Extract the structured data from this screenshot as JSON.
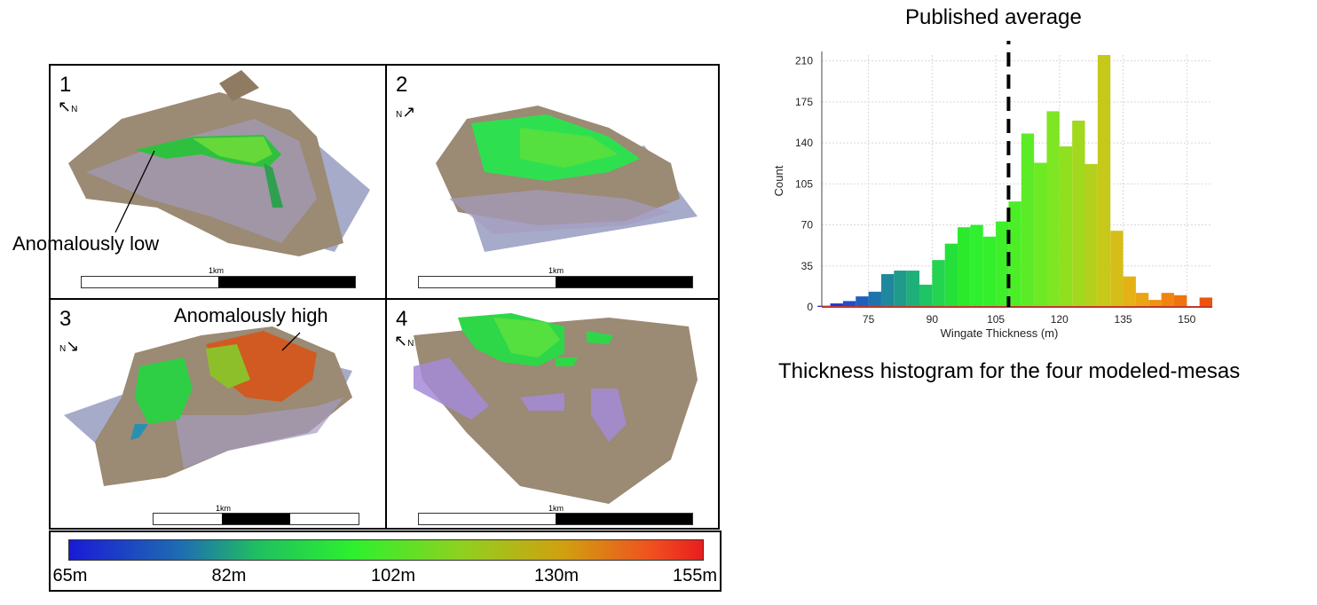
{
  "panels": [
    {
      "number": "1",
      "north": "N",
      "scale": "1km"
    },
    {
      "number": "2",
      "north": "N",
      "scale": "1km"
    },
    {
      "number": "3",
      "north": "N",
      "scale": "1km"
    },
    {
      "number": "4",
      "north": "N",
      "scale": "1km"
    }
  ],
  "annotations": {
    "low": "Anomalously low",
    "high": "Anomalously high"
  },
  "colorbar": {
    "ticks": [
      "65m",
      "82m",
      "102m",
      "130m",
      "155m"
    ],
    "colors": [
      "#1a1ad6",
      "#2ef02e",
      "#e81e1e"
    ]
  },
  "histogram_title": "Published average",
  "caption": "Thickness histogram for the four modeled-mesas",
  "chart_data": {
    "type": "bar",
    "xlabel": "Wingate Thickness (m)",
    "ylabel": "Count",
    "xlim": [
      64,
      156
    ],
    "ylim": [
      0,
      215
    ],
    "xticks": [
      75,
      90,
      105,
      120,
      135,
      150
    ],
    "yticks": [
      0,
      35,
      70,
      105,
      140,
      175,
      210
    ],
    "bin_width": 3,
    "bins": [
      {
        "x": 64.5,
        "count": 1,
        "color": "#1f2bd8"
      },
      {
        "x": 67.5,
        "count": 3,
        "color": "#1f3bd0"
      },
      {
        "x": 70.5,
        "count": 5,
        "color": "#1f4ec8"
      },
      {
        "x": 73.5,
        "count": 9,
        "color": "#1f60bb"
      },
      {
        "x": 76.5,
        "count": 13,
        "color": "#1f73ad"
      },
      {
        "x": 79.5,
        "count": 28,
        "color": "#1f889c"
      },
      {
        "x": 82.5,
        "count": 31,
        "color": "#1f9b8c"
      },
      {
        "x": 85.5,
        "count": 31,
        "color": "#1fb07a"
      },
      {
        "x": 88.5,
        "count": 19,
        "color": "#1fc465"
      },
      {
        "x": 91.5,
        "count": 40,
        "color": "#22d44f"
      },
      {
        "x": 94.5,
        "count": 54,
        "color": "#26e03a"
      },
      {
        "x": 97.5,
        "count": 68,
        "color": "#2bea2b"
      },
      {
        "x": 100.5,
        "count": 70,
        "color": "#2ef02e"
      },
      {
        "x": 103.5,
        "count": 60,
        "color": "#34f02c"
      },
      {
        "x": 106.5,
        "count": 73,
        "color": "#3ef02a"
      },
      {
        "x": 109.5,
        "count": 90,
        "color": "#4cee28"
      },
      {
        "x": 112.5,
        "count": 148,
        "color": "#5cec26"
      },
      {
        "x": 115.5,
        "count": 123,
        "color": "#6cea24"
      },
      {
        "x": 118.5,
        "count": 167,
        "color": "#7ee622"
      },
      {
        "x": 121.5,
        "count": 137,
        "color": "#90e020"
      },
      {
        "x": 124.5,
        "count": 159,
        "color": "#a2d81e"
      },
      {
        "x": 127.5,
        "count": 122,
        "color": "#b4d01c"
      },
      {
        "x": 130.5,
        "count": 215,
        "color": "#c6c81a"
      },
      {
        "x": 133.5,
        "count": 65,
        "color": "#d6be18"
      },
      {
        "x": 136.5,
        "count": 26,
        "color": "#e4b216"
      },
      {
        "x": 139.5,
        "count": 12,
        "color": "#eaa414"
      },
      {
        "x": 142.5,
        "count": 6,
        "color": "#ee9412"
      },
      {
        "x": 145.5,
        "count": 12,
        "color": "#f08410"
      },
      {
        "x": 148.5,
        "count": 10,
        "color": "#f0740e"
      },
      {
        "x": 151.5,
        "count": 0,
        "color": "#f0640e"
      },
      {
        "x": 154.5,
        "count": 8,
        "color": "#ee540e"
      }
    ],
    "published_average": 108
  }
}
